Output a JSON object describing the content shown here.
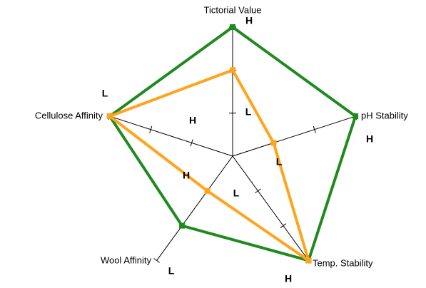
{
  "chart_data": {
    "type": "radar",
    "categories": [
      "Tictorial Value",
      "pH Stability",
      "Temp. Stability",
      "Wool Affinity",
      "Cellulose Affinity"
    ],
    "rlim": [
      0,
      3
    ],
    "rticks": [
      1,
      2
    ],
    "series": [
      {
        "color": "#1f8a1f",
        "values": [
          3,
          3,
          3,
          2,
          3
        ]
      },
      {
        "color": "#ffa41c",
        "values": [
          2,
          1,
          3,
          1,
          3
        ]
      }
    ],
    "annotations": [
      "H",
      "L",
      "H",
      "L",
      "H",
      "L",
      "L",
      "H",
      "L",
      "H"
    ]
  }
}
